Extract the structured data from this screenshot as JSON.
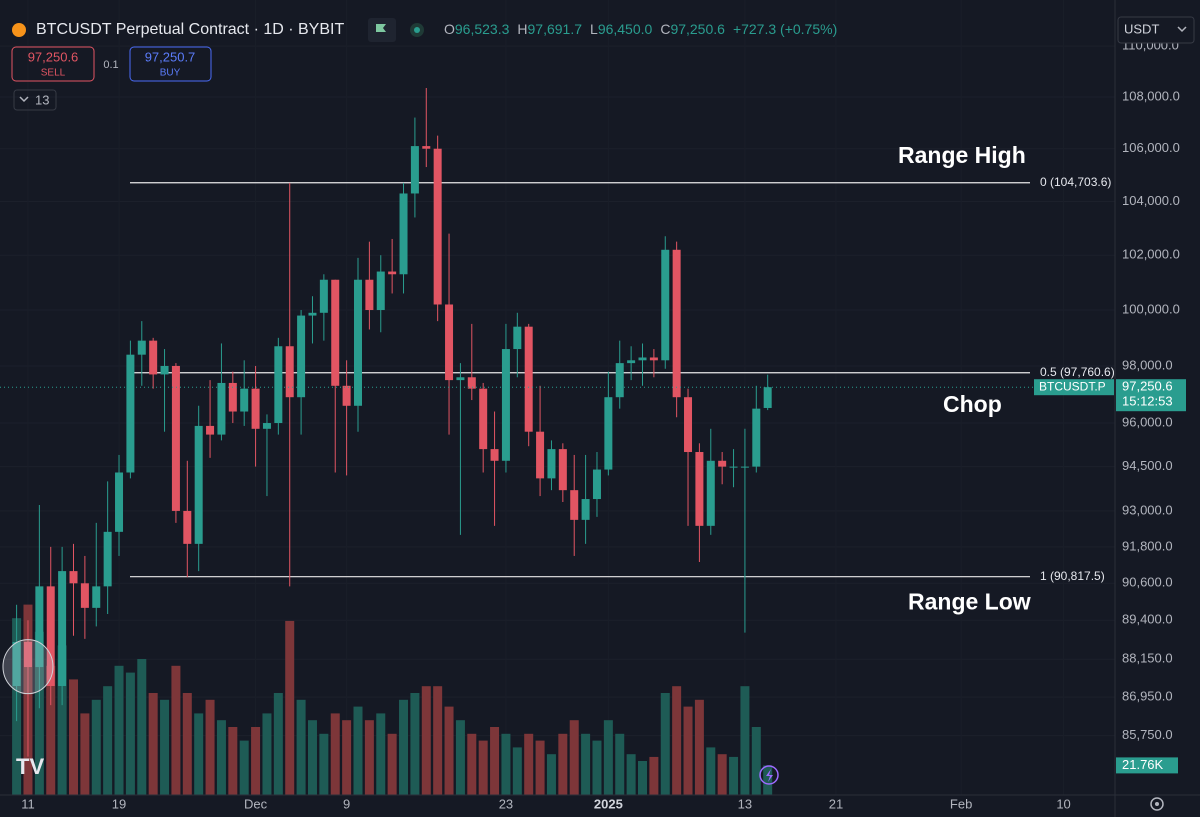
{
  "header": {
    "title": "BTCUSDT Perpetual Contract · 1D · BYBIT",
    "ohlc": [
      {
        "key": "O",
        "value": "96,523.3"
      },
      {
        "key": "H",
        "value": "97,691.7"
      },
      {
        "key": "L",
        "value": "96,450.0"
      },
      {
        "key": "C",
        "value": "97,250.6"
      }
    ],
    "change": "+727.3 (+0.75%)",
    "sell": {
      "price": "97,250.6",
      "label": "SELL"
    },
    "spread": "0.1",
    "buy": {
      "price": "97,250.7",
      "label": "BUY"
    },
    "indicators": "13",
    "currency": "USDT"
  },
  "chart_data": {
    "type": "candlestick",
    "log": true,
    "ylim": [
      83930,
      111850
    ],
    "yticks": [
      {
        "value": 110000,
        "label": "110,000.0"
      },
      {
        "value": 108000,
        "label": "108,000.0"
      },
      {
        "value": 106000,
        "label": "106,000.0"
      },
      {
        "value": 104000,
        "label": "104,000.0"
      },
      {
        "value": 102000,
        "label": "102,000.0"
      },
      {
        "value": 100000,
        "label": "100,000.0"
      },
      {
        "value": 98000,
        "label": "98,000.0"
      },
      {
        "value": 96000,
        "label": "96,000.0"
      },
      {
        "value": 94500,
        "label": "94,500.0"
      },
      {
        "value": 93000,
        "label": "93,000.0"
      },
      {
        "value": 91800,
        "label": "91,800.0"
      },
      {
        "value": 90600,
        "label": "90,600.0"
      },
      {
        "value": 89400,
        "label": "89,400.0"
      },
      {
        "value": 88150,
        "label": "88,150.0"
      },
      {
        "value": 86950,
        "label": "86,950.0"
      },
      {
        "value": 85750,
        "label": "85,750.0"
      }
    ],
    "xticks": [
      "11",
      "19",
      "Dec",
      "9",
      "23",
      "2025",
      "13",
      "21",
      "Feb",
      "10"
    ],
    "up_color": "#2a9d8f",
    "down_color": "#e25563",
    "up_volume_color": "#1e5b55",
    "down_volume_color": "#7d3639",
    "candles": [
      [
        87300,
        89900,
        86200,
        88700
      ],
      [
        88700,
        89400,
        85100,
        87900
      ],
      [
        87900,
        93200,
        86600,
        90500
      ],
      [
        90500,
        91800,
        86700,
        87300
      ],
      [
        87300,
        91800,
        86700,
        91000
      ],
      [
        91000,
        91900,
        88900,
        90600
      ],
      [
        90600,
        91500,
        88800,
        89800
      ],
      [
        89800,
        92600,
        89200,
        90500
      ],
      [
        90500,
        94000,
        89600,
        92300
      ],
      [
        92300,
        94900,
        91500,
        94300
      ],
      [
        94300,
        98900,
        94100,
        98400
      ],
      [
        98400,
        99600,
        97300,
        98900
      ],
      [
        98900,
        99000,
        97200,
        97700
      ],
      [
        97700,
        98600,
        95700,
        98000
      ],
      [
        98000,
        98100,
        92600,
        93000
      ],
      [
        93000,
        94700,
        90800,
        91900
      ],
      [
        91900,
        96600,
        91000,
        95900
      ],
      [
        95900,
        97500,
        94800,
        95600
      ],
      [
        95600,
        98800,
        95400,
        97400
      ],
      [
        97400,
        97800,
        96000,
        96400
      ],
      [
        96400,
        98200,
        95900,
        97200
      ],
      [
        97200,
        98000,
        94500,
        95800
      ],
      [
        95800,
        96300,
        93500,
        96000
      ],
      [
        96000,
        99000,
        95600,
        98700
      ],
      [
        98700,
        104700,
        90500,
        96900
      ],
      [
        96900,
        100000,
        95600,
        99800
      ],
      [
        99800,
        100500,
        98800,
        99900
      ],
      [
        99900,
        101300,
        98900,
        101100
      ],
      [
        101100,
        101100,
        94300,
        97300
      ],
      [
        97300,
        98200,
        94200,
        96600
      ],
      [
        96600,
        101900,
        95700,
        101100
      ],
      [
        101100,
        102500,
        99300,
        100000
      ],
      [
        100000,
        102000,
        99200,
        101400
      ],
      [
        101400,
        102600,
        100600,
        101300
      ],
      [
        101300,
        104700,
        100600,
        104300
      ],
      [
        104300,
        107200,
        103400,
        106100
      ],
      [
        106100,
        108350,
        105300,
        106000
      ],
      [
        106000,
        106500,
        99600,
        100200
      ],
      [
        100200,
        102800,
        95600,
        97500
      ],
      [
        97500,
        98100,
        92200,
        97600
      ],
      [
        97600,
        99500,
        96800,
        97200
      ],
      [
        97200,
        97400,
        94300,
        95100
      ],
      [
        95100,
        96400,
        92500,
        94700
      ],
      [
        94700,
        99500,
        94300,
        98600
      ],
      [
        98600,
        99900,
        97600,
        99400
      ],
      [
        99400,
        99500,
        95200,
        95700
      ],
      [
        95700,
        97300,
        93500,
        94100
      ],
      [
        94100,
        95400,
        93700,
        95100
      ],
      [
        95100,
        95300,
        93300,
        93700
      ],
      [
        93700,
        94900,
        91500,
        92700
      ],
      [
        92700,
        94900,
        91900,
        93400
      ],
      [
        93400,
        95000,
        92800,
        94400
      ],
      [
        94400,
        97800,
        94200,
        96900
      ],
      [
        96900,
        98900,
        96500,
        98100
      ],
      [
        98100,
        98700,
        97500,
        98200
      ],
      [
        98200,
        98800,
        97300,
        98300
      ],
      [
        98300,
        98600,
        97600,
        98200
      ],
      [
        98200,
        102700,
        97900,
        102200
      ],
      [
        102200,
        102500,
        96200,
        96900
      ],
      [
        96900,
        97200,
        92500,
        95000
      ],
      [
        95000,
        95300,
        91300,
        92500
      ],
      [
        92500,
        95800,
        92200,
        94700
      ],
      [
        94700,
        95000,
        93900,
        94500
      ],
      [
        94500,
        95100,
        93800,
        94500
      ],
      [
        94500,
        95800,
        89000,
        94500
      ],
      [
        94500,
        97300,
        94300,
        96500
      ],
      [
        96523.3,
        97691.7,
        96450,
        97250.6
      ]
    ],
    "volumes": [
      130000,
      140000,
      120000,
      95000,
      110000,
      85000,
      60000,
      70000,
      80000,
      95000,
      90000,
      100000,
      75000,
      70000,
      95000,
      75000,
      60000,
      70000,
      55000,
      50000,
      40000,
      50000,
      60000,
      75000,
      128000,
      70000,
      55000,
      45000,
      60000,
      55000,
      65000,
      55000,
      60000,
      45000,
      70000,
      75000,
      80000,
      80000,
      65000,
      55000,
      45000,
      40000,
      50000,
      45000,
      35000,
      45000,
      40000,
      30000,
      45000,
      55000,
      45000,
      40000,
      55000,
      45000,
      30000,
      25000,
      28000,
      75000,
      80000,
      65000,
      70000,
      35000,
      30000,
      28000,
      80000,
      50000,
      21760
    ],
    "volume_lim": [
      0,
      200000
    ],
    "volume_label": "21.76K",
    "price_tag": {
      "symbol": "BTCUSDT.P",
      "price": "97,250.6",
      "countdown": "15:12:53"
    },
    "levels": [
      {
        "value": 104703.6,
        "label": "0 (104,703.6)"
      },
      {
        "value": 97760.6,
        "label": "0.5 (97,760.6)"
      },
      {
        "value": 90817.5,
        "label": "1 (90,817.5)"
      }
    ],
    "annotations": [
      {
        "text": "Range High",
        "at": "levels.0"
      },
      {
        "text": "Chop",
        "at": "levels.1"
      },
      {
        "text": "Range Low",
        "at": "levels.2"
      }
    ]
  }
}
